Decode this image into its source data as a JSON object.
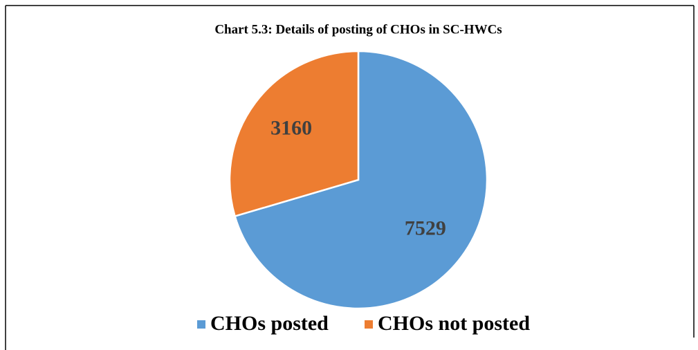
{
  "chart_data": {
    "type": "pie",
    "title": "Chart 5.3: Details of posting of CHOs in SC-HWCs",
    "categories": [
      "CHOs posted",
      "CHOs not posted"
    ],
    "values": [
      7529,
      3160
    ],
    "colors": [
      "#5b9bd5",
      "#ed7d31"
    ],
    "legend": "bottom"
  }
}
